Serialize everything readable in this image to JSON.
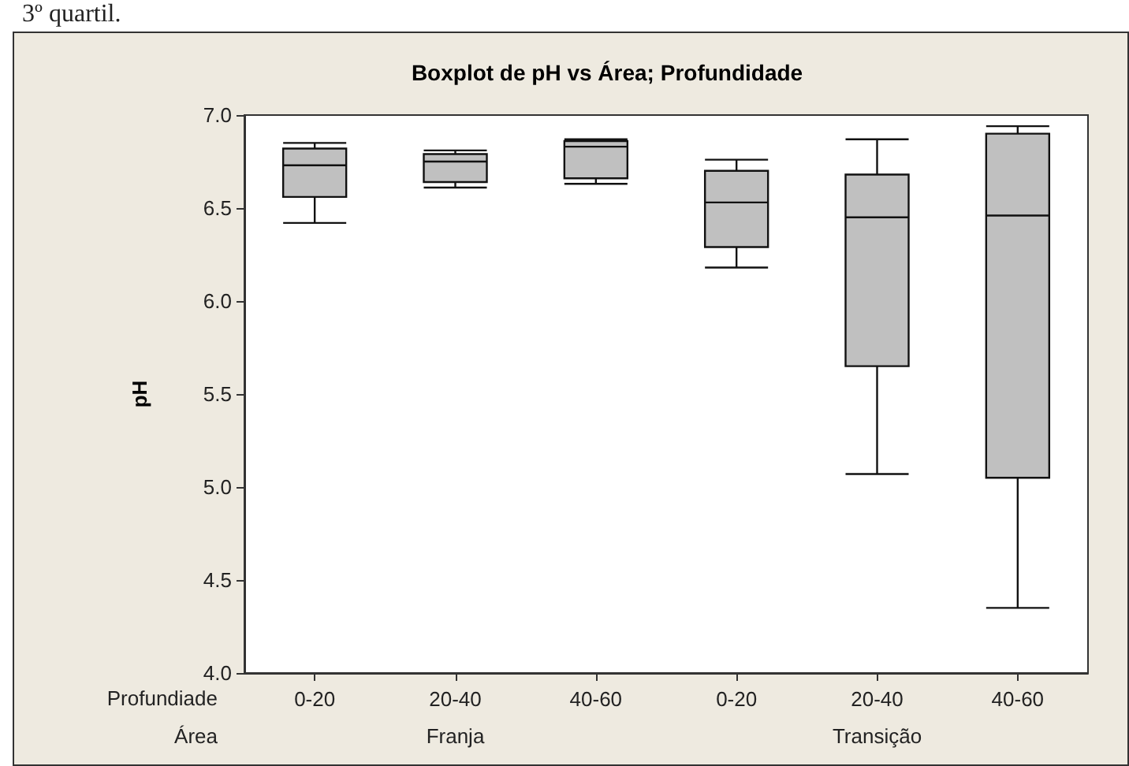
{
  "chart_data": {
    "type": "box",
    "title": "Boxplot de pH vs Área; Profundidade",
    "ylabel": "pH",
    "categories": [
      "0-20",
      "20-40",
      "40-60",
      "0-20",
      "20-40",
      "40-60"
    ],
    "boxes": [
      {
        "low": 6.42,
        "q1": 6.56,
        "median": 6.73,
        "q3": 6.82,
        "high": 6.85
      },
      {
        "low": 6.61,
        "q1": 6.64,
        "median": 6.75,
        "q3": 6.79,
        "high": 6.81
      },
      {
        "low": 6.63,
        "q1": 6.66,
        "median": 6.83,
        "q3": 6.86,
        "high": 6.87
      },
      {
        "low": 6.18,
        "q1": 6.29,
        "median": 6.53,
        "q3": 6.7,
        "high": 6.76
      },
      {
        "low": 5.07,
        "q1": 5.65,
        "median": 6.45,
        "q3": 6.68,
        "high": 6.87
      },
      {
        "low": 4.35,
        "q1": 5.05,
        "median": 6.46,
        "q3": 6.9,
        "high": 6.94
      }
    ],
    "color": "#c0c0c0",
    "ylim": [
      4,
      7
    ],
    "yticks": [
      {
        "value": 4,
        "label": "4.0"
      },
      {
        "value": 4.5,
        "label": "4.5"
      },
      {
        "value": 5,
        "label": "5.0"
      },
      {
        "value": 5.5,
        "label": "5.5"
      },
      {
        "value": 6,
        "label": "6.0"
      },
      {
        "value": 6.5,
        "label": "6.5"
      },
      {
        "value": 7,
        "label": "7.0"
      }
    ],
    "grid": false,
    "annotations": [
      "3º quartil.",
      "Profundiade",
      "Área",
      "Franja",
      "Transição"
    ]
  }
}
